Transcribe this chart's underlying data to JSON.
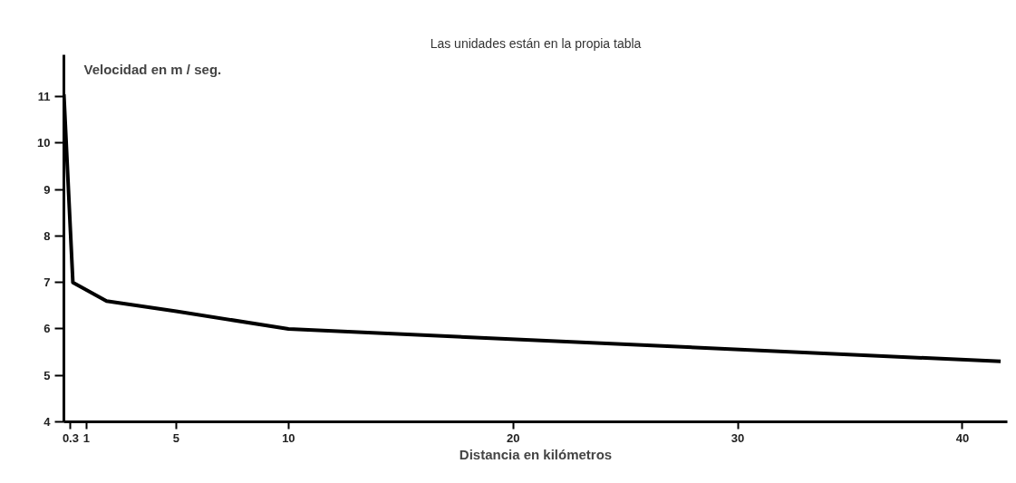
{
  "chart_data": {
    "type": "line",
    "title": "Las unidades están en la propia tabla",
    "ylabel": "Velocidad en m / seg.",
    "xlabel": "Distancia en kilómetros",
    "x": [
      0,
      0.4,
      1.9,
      5,
      10,
      41.7
    ],
    "series": [
      {
        "color": "#000000",
        "values": [
          11.05,
          7.0,
          6.6,
          6.38,
          6.0,
          5.3
        ]
      }
    ],
    "xlim": [
      0,
      42
    ],
    "ylim": [
      4,
      11.9
    ],
    "xticks": [
      0.3,
      1,
      5,
      10,
      20,
      30,
      40
    ],
    "yticks": [
      4,
      5,
      6,
      7,
      8,
      9,
      10,
      11
    ],
    "grid": false,
    "marker": "none",
    "line_style": "solid"
  }
}
